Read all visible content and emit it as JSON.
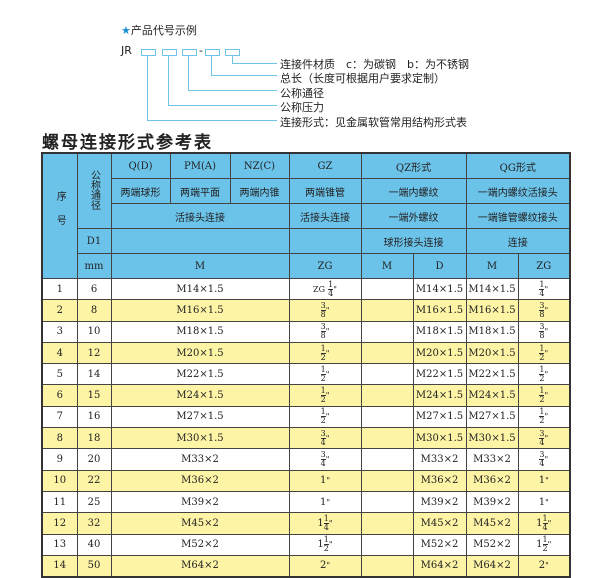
{
  "code_example": {
    "star_icon": "★",
    "heading": "产品代号示例",
    "prefix": "JR",
    "dash": "-",
    "labels": [
      "连接件材质　c：为碳钢　b：为不锈钢",
      "总长（长度可根据用户要求定制）",
      "公称通径",
      "公称压力",
      "连接形式：见金属软管常用结构形式表"
    ]
  },
  "title": "螺母连接形式参考表",
  "header": {
    "seq": "序号",
    "dn": "公称通径",
    "row1": [
      "Q(D)",
      "PM(A)",
      "NZ(C)",
      "GZ",
      "QZ形式",
      "QG形式"
    ],
    "row2": [
      "两端球形",
      "两端平面",
      "两端内锥",
      "两端锥管",
      "一端内螺纹",
      "一端内螺纹活接头"
    ],
    "row3": [
      "活接头连接",
      "活接头连接",
      "一端外螺纹",
      "一端锥管螺纹接头"
    ],
    "row4": [
      "D1",
      "",
      "",
      "球形接头连接",
      "连接"
    ],
    "row5": [
      "mm",
      "M",
      "ZG",
      "M",
      "D",
      "M",
      "ZG"
    ]
  },
  "rows": [
    {
      "no": "1",
      "dn": "6",
      "m": "M14×1.5",
      "zg": {
        "prefix": "ZG",
        "whole": "",
        "num": "1",
        "den": "4"
      },
      "qz_m": "",
      "qz_d": "M14×1.5",
      "qg_m": "M14×1.5",
      "qg_zg": {
        "whole": "",
        "num": "1",
        "den": "4"
      }
    },
    {
      "no": "2",
      "dn": "8",
      "m": "M16×1.5",
      "zg": {
        "whole": "",
        "num": "3",
        "den": "8"
      },
      "qz_m": "",
      "qz_d": "M16×1.5",
      "qg_m": "M16×1.5",
      "qg_zg": {
        "whole": "",
        "num": "3",
        "den": "8"
      }
    },
    {
      "no": "3",
      "dn": "10",
      "m": "M18×1.5",
      "zg": {
        "whole": "",
        "num": "3",
        "den": "8"
      },
      "qz_m": "",
      "qz_d": "M18×1.5",
      "qg_m": "M18×1.5",
      "qg_zg": {
        "whole": "",
        "num": "3",
        "den": "8"
      }
    },
    {
      "no": "4",
      "dn": "12",
      "m": "M20×1.5",
      "zg": {
        "whole": "",
        "num": "1",
        "den": "2"
      },
      "qz_m": "",
      "qz_d": "M20×1.5",
      "qg_m": "M20×1.5",
      "qg_zg": {
        "whole": "",
        "num": "1",
        "den": "2"
      }
    },
    {
      "no": "5",
      "dn": "14",
      "m": "M22×1.5",
      "zg": {
        "whole": "",
        "num": "1",
        "den": "2"
      },
      "qz_m": "",
      "qz_d": "M22×1.5",
      "qg_m": "M22×1.5",
      "qg_zg": {
        "whole": "",
        "num": "1",
        "den": "2"
      }
    },
    {
      "no": "6",
      "dn": "15",
      "m": "M24×1.5",
      "zg": {
        "whole": "",
        "num": "1",
        "den": "2"
      },
      "qz_m": "",
      "qz_d": "M24×1.5",
      "qg_m": "M24×1.5",
      "qg_zg": {
        "whole": "",
        "num": "1",
        "den": "2"
      }
    },
    {
      "no": "7",
      "dn": "16",
      "m": "M27×1.5",
      "zg": {
        "whole": "",
        "num": "1",
        "den": "2"
      },
      "qz_m": "",
      "qz_d": "M27×1.5",
      "qg_m": "M27×1.5",
      "qg_zg": {
        "whole": "",
        "num": "1",
        "den": "2"
      }
    },
    {
      "no": "8",
      "dn": "18",
      "m": "M30×1.5",
      "zg": {
        "whole": "",
        "num": "3",
        "den": "4"
      },
      "qz_m": "",
      "qz_d": "M30×1.5",
      "qg_m": "M30×1.5",
      "qg_zg": {
        "whole": "",
        "num": "3",
        "den": "4"
      }
    },
    {
      "no": "9",
      "dn": "20",
      "m": "M33×2",
      "zg": {
        "whole": "",
        "num": "3",
        "den": "4"
      },
      "qz_m": "",
      "qz_d": "M33×2",
      "qg_m": "M33×2",
      "qg_zg": {
        "whole": "",
        "num": "3",
        "den": "4"
      }
    },
    {
      "no": "10",
      "dn": "22",
      "m": "M36×2",
      "zg": {
        "whole": "1"
      },
      "qz_m": "",
      "qz_d": "M36×2",
      "qg_m": "M36×2",
      "qg_zg": {
        "whole": "1"
      }
    },
    {
      "no": "11",
      "dn": "25",
      "m": "M39×2",
      "zg": {
        "whole": "1"
      },
      "qz_m": "",
      "qz_d": "M39×2",
      "qg_m": "M39×2",
      "qg_zg": {
        "whole": "1"
      }
    },
    {
      "no": "12",
      "dn": "32",
      "m": "M45×2",
      "zg": {
        "whole": "1",
        "num": "1",
        "den": "4"
      },
      "qz_m": "",
      "qz_d": "M45×2",
      "qg_m": "M45×2",
      "qg_zg": {
        "whole": "1",
        "num": "1",
        "den": "4"
      }
    },
    {
      "no": "13",
      "dn": "40",
      "m": "M52×2",
      "zg": {
        "whole": "1",
        "num": "1",
        "den": "2"
      },
      "qz_m": "",
      "qz_d": "M52×2",
      "qg_m": "M52×2",
      "qg_zg": {
        "whole": "1",
        "num": "1",
        "den": "2"
      }
    },
    {
      "no": "14",
      "dn": "50",
      "m": "M64×2",
      "zg": {
        "whole": "2"
      },
      "qz_m": "",
      "qz_d": "M64×2",
      "qg_m": "M64×2",
      "qg_zg": {
        "whole": "2"
      }
    }
  ],
  "inch_mark": "\""
}
